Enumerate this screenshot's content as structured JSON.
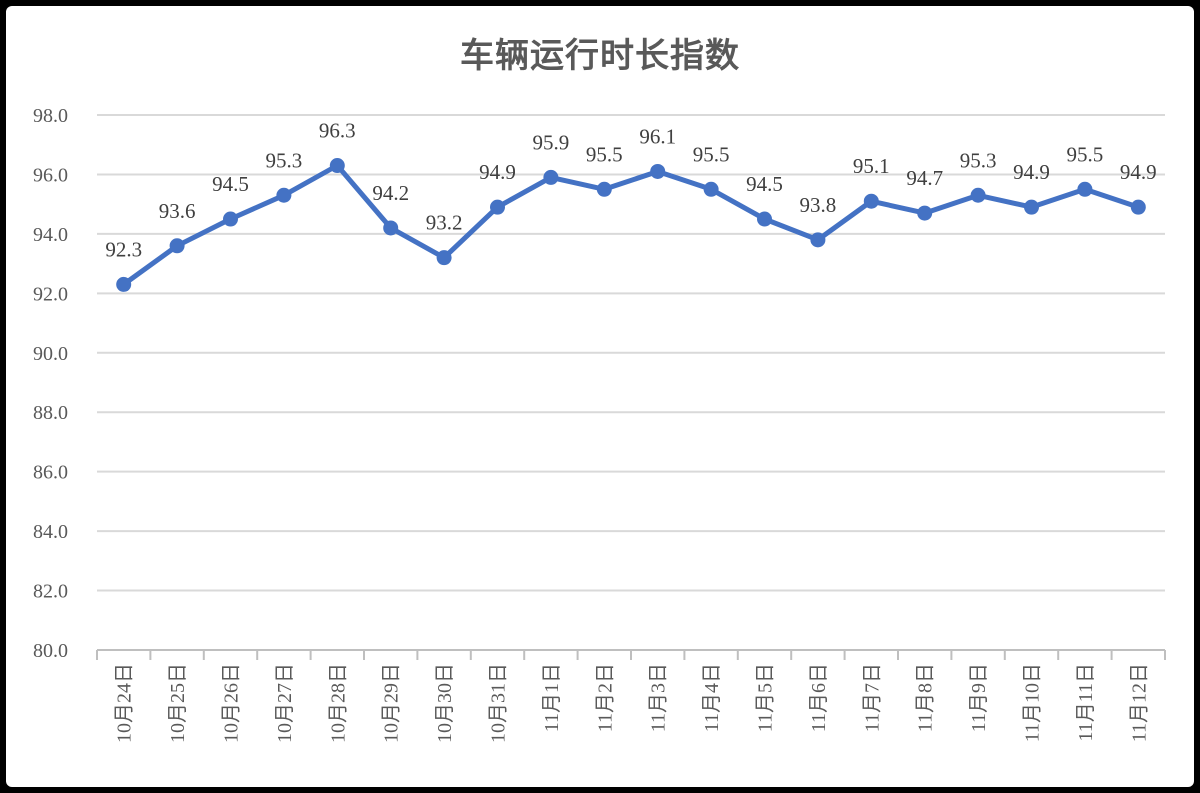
{
  "chart_data": {
    "type": "line",
    "title": "车辆运行时长指数",
    "categories": [
      "10月24日",
      "10月25日",
      "10月26日",
      "10月27日",
      "10月28日",
      "10月29日",
      "10月30日",
      "10月31日",
      "11月1日",
      "11月2日",
      "11月3日",
      "11月4日",
      "11月5日",
      "11月6日",
      "11月7日",
      "11月8日",
      "11月9日",
      "11月10日",
      "11月11日",
      "11月12日"
    ],
    "series": [
      {
        "values": [
          92.3,
          93.6,
          94.5,
          95.3,
          96.3,
          94.2,
          93.2,
          94.9,
          95.9,
          95.5,
          96.1,
          95.5,
          94.5,
          93.8,
          95.1,
          94.7,
          95.3,
          94.9,
          95.5,
          94.9
        ],
        "labels": [
          "92.3",
          "93.6",
          "94.5",
          "95.3",
          "96.3",
          "94.2",
          "93.2",
          "94.9",
          "95.9",
          "95.5",
          "96.1",
          "95.5",
          "94.5",
          "93.8",
          "95.1",
          "94.7",
          "95.3",
          "94.9",
          "95.5",
          "94.9"
        ]
      }
    ],
    "ylim": [
      80,
      98
    ],
    "yticks": [
      "80.0",
      "82.0",
      "84.0",
      "86.0",
      "88.0",
      "90.0",
      "92.0",
      "94.0",
      "96.0",
      "98.0"
    ],
    "grid": true,
    "legend": "none",
    "line_color": "#4472C4",
    "grid_color": "#d9d9d9"
  }
}
